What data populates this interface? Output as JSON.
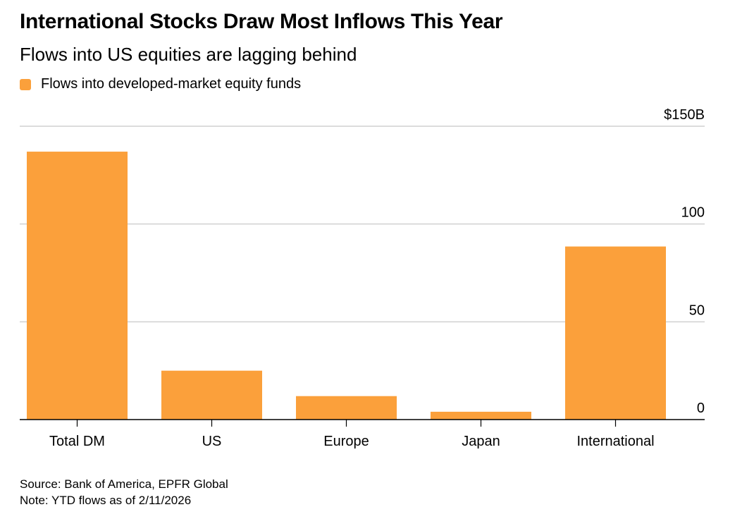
{
  "title": "International Stocks Draw Most Inflows This Year",
  "subtitle": "Flows into US equities are lagging behind",
  "source": "Source: Bank of America, EPFR Global",
  "note": "Note: YTD flows as of 2/11/2026",
  "colors": {
    "bar": "#FBA03B",
    "grid": "#d0d0d0",
    "axis": "#000000"
  },
  "chart_data": {
    "type": "bar",
    "title": "International Stocks Draw Most Inflows This Year",
    "legend": [
      {
        "label": "Flows into developed-market equity funds",
        "placement": "top-left"
      }
    ],
    "categories": [
      "Total DM",
      "US",
      "Europe",
      "Japan",
      "International"
    ],
    "series": [
      {
        "name": "Flows into developed-market equity funds",
        "values": [
          137,
          25,
          12,
          4,
          88.5
        ]
      }
    ],
    "ylim": [
      0,
      150
    ],
    "yticks": [
      0,
      50,
      100,
      150
    ],
    "ytick_labels": [
      "0",
      "50",
      "100",
      "$150B"
    ],
    "xlabel": "",
    "ylabel": "",
    "grid": true,
    "y_axis_side": "right"
  }
}
